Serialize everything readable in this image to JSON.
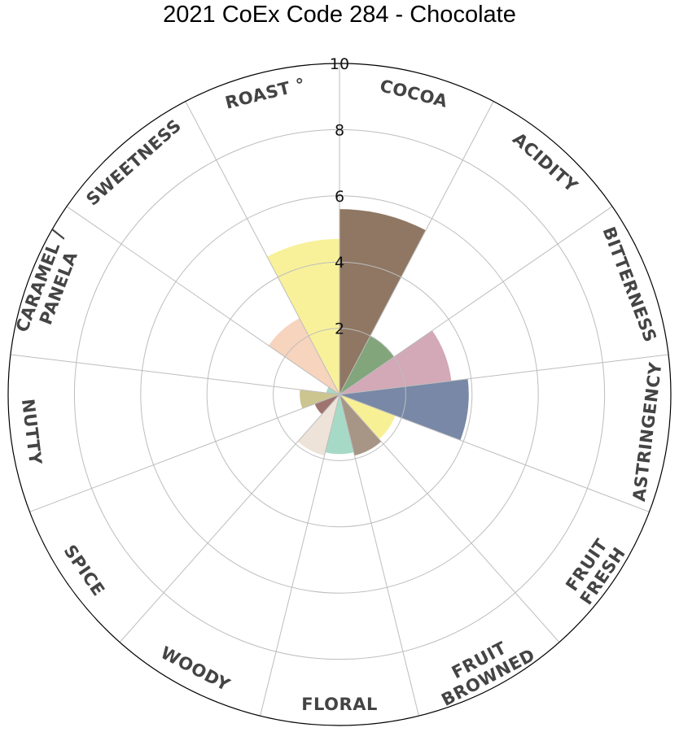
{
  "chart_data": {
    "type": "bar",
    "subtype": "polar",
    "title": "2021 CoEx Code 284 - Chocolate",
    "rlim": [
      0,
      10
    ],
    "rticks": [
      "2",
      "4",
      "6",
      "8",
      "10"
    ],
    "grid": true,
    "categories": [
      "COCOA",
      "ACIDITY",
      "BITTERNESS",
      "ASTRINGENCY",
      "FRESH FRUIT",
      "BROWNED FRUIT",
      "FLORAL",
      "WOODY",
      "SPICE",
      "NUTTY",
      "CARAMEL / PANELA",
      "SWEETNESS",
      "ROAST °"
    ],
    "values": [
      5.6,
      2.0,
      3.4,
      3.9,
      1.8,
      1.9,
      1.8,
      1.9,
      0.8,
      1.2,
      0.4,
      2.6,
      4.7
    ],
    "colors": [
      "#8f7763",
      "#82a57b",
      "#d3a8b7",
      "#7888a6",
      "#f8f095",
      "#a79585",
      "#a6dac7",
      "#ede3d8",
      "#9f7470",
      "#ccc590",
      "#a8d8c4",
      "#f7d4bd",
      "#f8f19a"
    ]
  }
}
